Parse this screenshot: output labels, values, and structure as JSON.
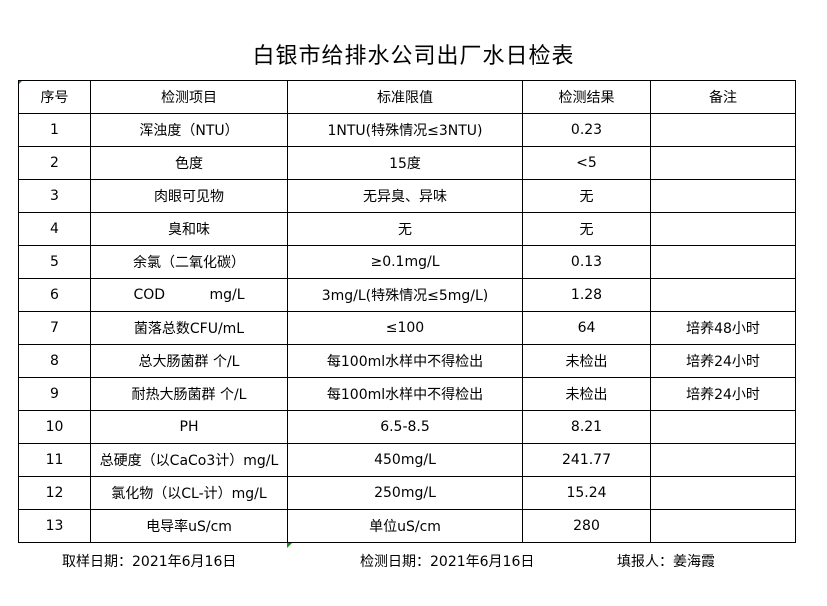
{
  "title": "白银市给排水公司出厂水日检表",
  "headers": [
    "序号",
    "检测项目",
    "标准限值",
    "检测结果",
    "备注"
  ],
  "rows": [
    [
      "1",
      "浑浊度（NTU）",
      "1NTU(特殊情况≤3NTU)",
      "0.23",
      ""
    ],
    [
      "2",
      "色度",
      "15度",
      "<5",
      ""
    ],
    [
      "3",
      "肉眼可见物",
      "无异臭、异味",
      "无",
      ""
    ],
    [
      "4",
      "臭和味",
      "无",
      "无",
      ""
    ],
    [
      "5",
      "余氯（二氧化碳）",
      "≥0.1mg/L",
      "0.13",
      ""
    ],
    [
      "6",
      "COD          mg/L",
      "3mg/L(特殊情况≤5mg/L)",
      "1.28",
      ""
    ],
    [
      "7",
      "菌落总数CFU/mL",
      "≤100",
      "64",
      "培养48小时"
    ],
    [
      "8",
      "总大肠菌群 个/L",
      "每100ml水样中不得检出",
      "未检出",
      "培养24小时"
    ],
    [
      "9",
      "耐热大肠菌群 个/L",
      "每100ml水样中不得检出",
      "未检出",
      "培养24小时"
    ],
    [
      "10",
      "PH",
      "6.5-8.5",
      "8.21",
      ""
    ],
    [
      "11",
      "总硬度（以CaCo3计）mg/L",
      "450mg/L",
      "241.77",
      ""
    ],
    [
      "12",
      "氯化物（以CL-计）mg/L",
      "250mg/L",
      "15.24",
      ""
    ],
    [
      "13",
      "电导率uS/cm",
      "单位uS/cm",
      "280",
      ""
    ]
  ],
  "footer": {
    "sample_date": "取样日期：2021年6月16日",
    "test_date": "检测日期：2021年6月16日",
    "reporter": "填报人：姜海霞"
  }
}
